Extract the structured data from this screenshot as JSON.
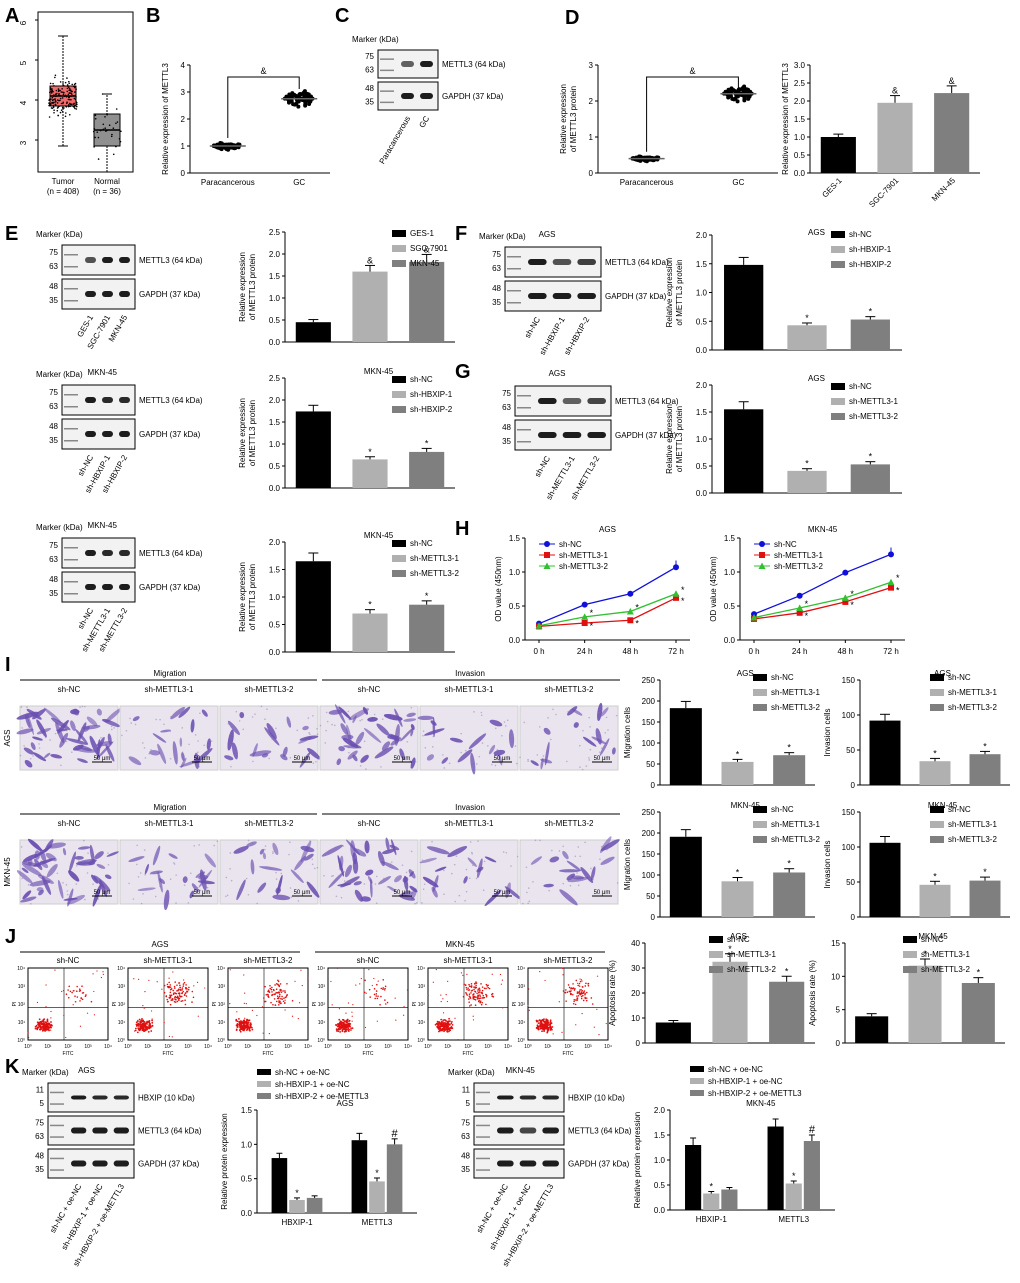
{
  "panel_letters": [
    "A",
    "B",
    "C",
    "D",
    "E",
    "F",
    "G",
    "H",
    "I",
    "J",
    "K"
  ],
  "colors": {
    "black": "#000000",
    "light_gray": "#b0b0b0",
    "dark_gray": "#7f7f7f",
    "blue": "#1010d8",
    "red": "#e01010",
    "green": "#30c030",
    "box_red": "#f46a6a",
    "box_gray": "#909090",
    "stain": "#6a4fb0"
  },
  "A": {
    "ylabels": [
      "3",
      "4",
      "5",
      "6"
    ],
    "categories": [
      "Tumor",
      "Normal"
    ],
    "ns": [
      "(n = 408)",
      "(n = 36)"
    ]
  },
  "B": {
    "ylabel": "Relative expression of METTL3",
    "ticks": [
      "0",
      "1",
      "2",
      "3",
      "4"
    ],
    "categories": [
      "Paracancerous",
      "GC"
    ],
    "sig": "&"
  },
  "C": {
    "marker": "Marker (kDa)",
    "m1": [
      "75",
      "63"
    ],
    "m2": [
      "48",
      "35"
    ],
    "band1": "METTL3 (64 kDa)",
    "band2": "GAPDH (37 kDa)",
    "lanes": [
      "Paracancerous",
      "GC"
    ]
  },
  "D1": {
    "ylabel1": "Relative expression",
    "ylabel2": "of METTL3 protein",
    "ticks": [
      "0",
      "1",
      "2",
      "3"
    ],
    "categories": [
      "Paracancerous",
      "GC"
    ],
    "sig": "&"
  },
  "D2": {
    "ylabel": "Relative expression of METTL3",
    "ticks": [
      "0.0",
      "0.5",
      "1.0",
      "1.5",
      "2.0",
      "2.5",
      "3.0"
    ],
    "categories": [
      "GES-1",
      "SGC-7901",
      "MKN-45"
    ],
    "sig": [
      "",
      "&",
      "&"
    ]
  },
  "E_blot1": {
    "marker": "Marker (kDa)",
    "m1": [
      "75",
      "63"
    ],
    "m2": [
      "48",
      "35"
    ],
    "band1": "METTL3 (64 kDa)",
    "band2": "GAPDH (37 kDa)",
    "lanes": [
      "GES-1",
      "SGC-7901",
      "MKN-45"
    ]
  },
  "E_blot2": {
    "marker": "Marker (kDa)",
    "title": "MKN-45",
    "m1": [
      "75",
      "63"
    ],
    "m2": [
      "48",
      "35"
    ],
    "band1": "METTL3 (64 kDa)",
    "band2": "GAPDH (37 kDa)",
    "lanes": [
      "sh-NC",
      "sh-HBXIP-1",
      "sh-HBXIP-2"
    ]
  },
  "E_blot3": {
    "marker": "Marker (kDa)",
    "title": "MKN-45",
    "m1": [
      "75",
      "63"
    ],
    "m2": [
      "48",
      "35"
    ],
    "band1": "METTL3 (64 kDa)",
    "band2": "GAPDH (37 kDa)",
    "lanes": [
      "sh-NC",
      "sh-METTL3-1",
      "sh-METTL3-2"
    ]
  },
  "F_blot": {
    "marker": "Marker (kDa)",
    "title": "AGS",
    "m1": [
      "75",
      "63"
    ],
    "m2": [
      "48",
      "35"
    ],
    "band1": "METTL3 (64 kDa)",
    "band2": "GAPDH (37 kDa)",
    "lanes": [
      "sh-NC",
      "sh-HBXIP-1",
      "sh-HBXIP-2"
    ]
  },
  "G_blot": {
    "marker": "",
    "title": "AGS",
    "m1": [
      "75",
      "63"
    ],
    "m2": [
      "48",
      "35"
    ],
    "band1": "METTL3 (64 kDa)",
    "band2": "GAPDH (37 kDa)",
    "lanes": [
      "sh-NC",
      "sh-METTL3-1",
      "sh-METTL3-2"
    ]
  },
  "I": {
    "groups": [
      "Migration",
      "Invasion"
    ],
    "cols": [
      "sh-NC",
      "sh-METTL3-1",
      "sh-METTL3-2"
    ],
    "rows": [
      "AGS",
      "MKN-45"
    ],
    "scale": "50 μm"
  },
  "J": {
    "groups": [
      "AGS",
      "MKN-45"
    ],
    "cols": [
      "sh-NC",
      "sh-METTL3-1",
      "sh-METTL3-2"
    ],
    "xaxis": "FITC",
    "yaxis": "PI",
    "ticks": [
      "10⁰",
      "10¹",
      "10²",
      "10³",
      "10⁴"
    ]
  },
  "K_blot1": {
    "marker": "Marker (kDa)",
    "title": "AGS",
    "m0": [
      "11",
      "5"
    ],
    "m1": [
      "75",
      "63"
    ],
    "m2": [
      "48",
      "35"
    ],
    "band0": "HBXIP (10 kDa)",
    "band1": "METTL3 (64 kDa)",
    "band2": "GAPDH (37 kDa)",
    "lanes": [
      "sh-NC + oe-NC",
      "sh-HBXIP-1 + oe-NC",
      "sh-HBXIP-2 + oe-METTL3"
    ]
  },
  "K_blot2": {
    "marker": "Marker (kDa)",
    "title": "MKN-45",
    "m0": [
      "11",
      "5"
    ],
    "m1": [
      "75",
      "63"
    ],
    "m2": [
      "48",
      "35"
    ],
    "band0": "HBXIP (10 kDa)",
    "band1": "METTL3 (64 kDa)",
    "band2": "GAPDH (37 kDa)",
    "lanes": [
      "sh-NC + oe-NC",
      "sh-HBXIP-1 + oe-NC",
      "sh-HBXIP-2 + oe-METTL3"
    ]
  },
  "chart_data": [
    {
      "id": "E_bar",
      "type": "bar",
      "title": "",
      "ylabel": [
        "Relative expression",
        "of METTL3 protein"
      ],
      "categories": [
        "GES-1",
        "SGC-7901",
        "MKN-45"
      ],
      "values": [
        0.45,
        1.6,
        1.82
      ],
      "errors": [
        0.06,
        0.14,
        0.17
      ],
      "ylim": [
        0,
        2.5
      ],
      "ticks": [
        "0.0",
        "0.5",
        "1.0",
        "1.5",
        "2.0",
        "2.5"
      ],
      "sig": [
        "",
        "&",
        "&"
      ],
      "legend": [
        "GES-1",
        "SGC-7901",
        "MKN-45"
      ],
      "legend_pos": "top-right"
    },
    {
      "id": "F_bar",
      "type": "bar",
      "title": "AGS",
      "ylabel": [
        "Relative expression",
        "of METTL3 protein"
      ],
      "categories": [
        "sh-NC",
        "sh-HBXIP-1",
        "sh-HBXIP-2"
      ],
      "values": [
        1.48,
        0.43,
        0.53
      ],
      "errors": [
        0.13,
        0.04,
        0.05
      ],
      "ylim": [
        0,
        2.0
      ],
      "ticks": [
        "0.0",
        "0.5",
        "1.0",
        "1.5",
        "2.0"
      ],
      "sig": [
        "",
        "*",
        "*"
      ],
      "legend": [
        "sh-NC",
        "sh-HBXIP-1",
        "sh-HBXIP-2"
      ],
      "legend_pos": "top-right"
    },
    {
      "id": "E2_bar",
      "type": "bar",
      "title": "MKN-45",
      "ylabel": [
        "Relative expression",
        "of METTL3 protein"
      ],
      "categories": [
        "sh-NC",
        "sh-HBXIP-1",
        "sh-HBXIP-2"
      ],
      "values": [
        1.74,
        0.65,
        0.82
      ],
      "errors": [
        0.14,
        0.06,
        0.08
      ],
      "ylim": [
        0,
        2.5
      ],
      "ticks": [
        "0.0",
        "0.5",
        "1.0",
        "1.5",
        "2.0",
        "2.5"
      ],
      "sig": [
        "",
        "*",
        "*"
      ],
      "legend": [
        "sh-NC",
        "sh-HBXIP-1",
        "sh-HBXIP-2"
      ],
      "legend_pos": "top-right"
    },
    {
      "id": "G_bar",
      "type": "bar",
      "title": "AGS",
      "ylabel": [
        "Relative expression",
        "of METTL3 protein"
      ],
      "categories": [
        "sh-NC",
        "sh-METTL3-1",
        "sh-METTL3-2"
      ],
      "values": [
        1.55,
        0.41,
        0.53
      ],
      "errors": [
        0.14,
        0.04,
        0.05
      ],
      "ylim": [
        0,
        2.0
      ],
      "ticks": [
        "0.0",
        "0.5",
        "1.0",
        "1.5",
        "2.0"
      ],
      "sig": [
        "",
        "*",
        "*"
      ],
      "legend": [
        "sh-NC",
        "sh-METTL3-1",
        "sh-METTL3-2"
      ],
      "legend_pos": "top-right"
    },
    {
      "id": "E3_bar",
      "type": "bar",
      "title": "MKN-45",
      "ylabel": [
        "Relative expression",
        "of METTL3 protein"
      ],
      "categories": [
        "sh-NC",
        "sh-METTL3-1",
        "sh-METTL3-2"
      ],
      "values": [
        1.65,
        0.7,
        0.86
      ],
      "errors": [
        0.15,
        0.07,
        0.07
      ],
      "ylim": [
        0,
        2.0
      ],
      "ticks": [
        "0.0",
        "0.5",
        "1.0",
        "1.5",
        "2.0"
      ],
      "sig": [
        "",
        "*",
        "*"
      ],
      "legend": [
        "sh-NC",
        "sh-METTL3-1",
        "sh-METTL3-2"
      ],
      "legend_pos": "top-right"
    },
    {
      "id": "H1",
      "type": "line",
      "title": "AGS",
      "ylabel": "OD value (450nm)",
      "x": [
        "0 h",
        "24 h",
        "48 h",
        "72 h"
      ],
      "ylim": [
        0,
        1.5
      ],
      "ticks": [
        "0.0",
        "0.5",
        "1.0",
        "1.5"
      ],
      "series": [
        {
          "name": "sh-NC",
          "values": [
            0.24,
            0.52,
            0.68,
            1.07
          ]
        },
        {
          "name": "sh-METTL3-1",
          "values": [
            0.2,
            0.25,
            0.29,
            0.62
          ]
        },
        {
          "name": "sh-METTL3-2",
          "values": [
            0.21,
            0.34,
            0.42,
            0.68
          ]
        }
      ],
      "legend_pos": "top-left"
    },
    {
      "id": "H2",
      "type": "line",
      "title": "MKN-45",
      "ylabel": "OD value (450nm)",
      "x": [
        "0 h",
        "24 h",
        "48 h",
        "72 h"
      ],
      "ylim": [
        0,
        1.5
      ],
      "ticks": [
        "0.0",
        "0.5",
        "1.0",
        "1.5"
      ],
      "series": [
        {
          "name": "sh-NC",
          "values": [
            0.38,
            0.65,
            0.99,
            1.26
          ]
        },
        {
          "name": "sh-METTL3-1",
          "values": [
            0.31,
            0.4,
            0.56,
            0.77
          ]
        },
        {
          "name": "sh-METTL3-2",
          "values": [
            0.33,
            0.47,
            0.62,
            0.85
          ]
        }
      ],
      "legend_pos": "top-left"
    },
    {
      "id": "I1",
      "type": "bar",
      "title": "AGS",
      "ylabel": [
        "Migration cells"
      ],
      "categories": [
        "sh-NC",
        "sh-METTL3-1",
        "sh-METTL3-2"
      ],
      "values": [
        183,
        55,
        71
      ],
      "errors": [
        16,
        6,
        6
      ],
      "ylim": [
        0,
        250
      ],
      "ticks": [
        "0",
        "50",
        "100",
        "150",
        "200",
        "250"
      ],
      "sig": [
        "",
        "*",
        "*"
      ],
      "legend": [
        "sh-NC",
        "sh-METTL3-1",
        "sh-METTL3-2"
      ],
      "legend_pos": "top-right"
    },
    {
      "id": "I2",
      "type": "bar",
      "title": "AGS",
      "ylabel": [
        "Invasion cells"
      ],
      "categories": [
        "sh-NC",
        "sh-METTL3-1",
        "sh-METTL3-2"
      ],
      "values": [
        92,
        34,
        44
      ],
      "errors": [
        9,
        4,
        4
      ],
      "ylim": [
        0,
        150
      ],
      "ticks": [
        "0",
        "50",
        "100",
        "150"
      ],
      "sig": [
        "",
        "*",
        "*"
      ],
      "legend": [
        "sh-NC",
        "sh-METTL3-1",
        "sh-METTL3-2"
      ],
      "legend_pos": "top-right"
    },
    {
      "id": "I3",
      "type": "bar",
      "title": "MKN-45",
      "ylabel": [
        "Migration cells"
      ],
      "categories": [
        "sh-NC",
        "sh-METTL3-1",
        "sh-METTL3-2"
      ],
      "values": [
        191,
        85,
        106
      ],
      "errors": [
        17,
        9,
        9
      ],
      "ylim": [
        0,
        250
      ],
      "ticks": [
        "0",
        "50",
        "100",
        "150",
        "200",
        "250"
      ],
      "sig": [
        "",
        "*",
        "*"
      ],
      "legend": [
        "sh-NC",
        "sh-METTL3-1",
        "sh-METTL3-2"
      ],
      "legend_pos": "top-right"
    },
    {
      "id": "I4",
      "type": "bar",
      "title": "MKN-45",
      "ylabel": [
        "Invasion cells"
      ],
      "categories": [
        "sh-NC",
        "sh-METTL3-1",
        "sh-METTL3-2"
      ],
      "values": [
        106,
        46,
        52
      ],
      "errors": [
        9,
        5,
        5
      ],
      "ylim": [
        0,
        150
      ],
      "ticks": [
        "0",
        "50",
        "100",
        "150"
      ],
      "sig": [
        "",
        "*",
        "*"
      ],
      "legend": [
        "sh-NC",
        "sh-METTL3-1",
        "sh-METTL3-2"
      ],
      "legend_pos": "top-right"
    },
    {
      "id": "J1",
      "type": "bar",
      "title": "AGS",
      "ylabel": [
        "Apoptosis rate (%)"
      ],
      "categories": [
        "sh-NC",
        "sh-METTL3-1",
        "sh-METTL3-2"
      ],
      "values": [
        8.2,
        32.5,
        24.5
      ],
      "errors": [
        0.8,
        3.2,
        2.2
      ],
      "ylim": [
        0,
        40
      ],
      "ticks": [
        "0",
        "10",
        "20",
        "30",
        "40"
      ],
      "sig": [
        "",
        "*",
        "*"
      ],
      "legend": [
        "sh-NC",
        "sh-METTL3-1",
        "sh-METTL3-2"
      ],
      "legend_pos": "top-right"
    },
    {
      "id": "J2",
      "type": "bar",
      "title": "MKN-45",
      "ylabel": [
        "Apoptosis rate (%)"
      ],
      "categories": [
        "sh-NC",
        "sh-METTL3-1",
        "sh-METTL3-2"
      ],
      "values": [
        4.0,
        11.6,
        9.0
      ],
      "errors": [
        0.4,
        1.0,
        0.8
      ],
      "ylim": [
        0,
        15
      ],
      "ticks": [
        "0",
        "5",
        "10",
        "15"
      ],
      "sig": [
        "",
        "*",
        "*"
      ],
      "legend": [
        "sh-NC",
        "sh-METTL3-1",
        "sh-METTL3-2"
      ],
      "legend_pos": "top-right"
    },
    {
      "id": "K1",
      "type": "bar",
      "title": "AGS",
      "ylabel": [
        "Relative protein expression"
      ],
      "categories": [
        "HBXIP-1",
        "METTL3"
      ],
      "series": [
        {
          "name": "sh-NC + oe-NC",
          "values": [
            0.8,
            1.06
          ],
          "errors": [
            0.07,
            0.1
          ]
        },
        {
          "name": "sh-HBXIP-1 + oe-NC",
          "values": [
            0.19,
            0.46
          ],
          "errors": [
            0.03,
            0.05
          ]
        },
        {
          "name": "sh-HBXIP-2 + oe-METTL3",
          "values": [
            0.22,
            1.0
          ],
          "errors": [
            0.03,
            0.08
          ]
        }
      ],
      "ylim": [
        0,
        1.5
      ],
      "ticks": [
        "0.0",
        "0.5",
        "1.0",
        "1.5"
      ],
      "sig": [
        [
          "",
          "*",
          ""
        ],
        [
          "",
          "*",
          "#"
        ]
      ],
      "legend_pos": "top"
    },
    {
      "id": "K2",
      "type": "bar",
      "title": "MKN-45",
      "ylabel": [
        "Relative protein expression"
      ],
      "categories": [
        "HBXIP-1",
        "METTL3"
      ],
      "series": [
        {
          "name": "sh-NC + oe-NC",
          "values": [
            1.3,
            1.67
          ],
          "errors": [
            0.14,
            0.15
          ]
        },
        {
          "name": "sh-HBXIP-1 + oe-NC",
          "values": [
            0.33,
            0.53
          ],
          "errors": [
            0.04,
            0.05
          ]
        },
        {
          "name": "sh-HBXIP-2 + oe-METTL3",
          "values": [
            0.41,
            1.38
          ],
          "errors": [
            0.04,
            0.12
          ]
        }
      ],
      "ylim": [
        0,
        2.0
      ],
      "ticks": [
        "0.0",
        "0.5",
        "1.0",
        "1.5",
        "2.0"
      ],
      "sig": [
        [
          "",
          "*",
          ""
        ],
        [
          "",
          "*",
          "#"
        ]
      ],
      "legend_pos": "top"
    },
    {
      "id": "A_box",
      "type": "box",
      "title": "",
      "categories": [
        "Tumor",
        "Normal"
      ],
      "median": [
        4.1,
        3.25
      ],
      "q1": [
        3.85,
        2.85
      ],
      "q3": [
        4.35,
        3.65
      ],
      "whisker_low": [
        2.85,
        2.2
      ],
      "whisker_high": [
        5.6,
        4.15
      ],
      "ylim": [
        2.2,
        6.2
      ]
    },
    {
      "id": "B_dot",
      "type": "scatter",
      "title": "",
      "categories": [
        "Paracancerous",
        "GC"
      ],
      "mean": [
        1.0,
        2.75
      ],
      "spread": [
        0.15,
        0.35
      ],
      "ylim": [
        0,
        4
      ]
    },
    {
      "id": "D_dot",
      "type": "scatter",
      "title": "",
      "categories": [
        "Paracancerous",
        "GC"
      ],
      "mean": [
        0.4,
        2.2
      ],
      "spread": [
        0.08,
        0.25
      ],
      "ylim": [
        0,
        3
      ]
    },
    {
      "id": "D2_bar",
      "type": "bar",
      "title": "",
      "ylabel": [
        "Relative expression of METTL3"
      ],
      "categories": [
        "GES-1",
        "SGC-7901",
        "MKN-45"
      ],
      "values": [
        1.0,
        1.95,
        2.22
      ],
      "errors": [
        0.08,
        0.2,
        0.2
      ],
      "ylim": [
        0,
        3
      ],
      "ticks": [
        "0.0",
        "0.5",
        "1.0",
        "1.5",
        "2.0",
        "2.5",
        "3.0"
      ],
      "sig": [
        "",
        "&",
        "&"
      ]
    }
  ]
}
